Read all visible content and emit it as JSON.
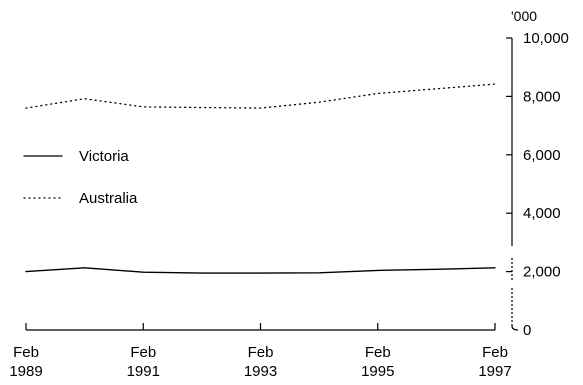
{
  "chart_data": {
    "type": "line",
    "title": "",
    "xlabel": "",
    "ylabel": "'000",
    "y_unit_label": "'000",
    "ylim": [
      0,
      10000
    ],
    "y_ticks": [
      0,
      2000,
      4000,
      6000,
      8000,
      10000
    ],
    "y_tick_labels": [
      "0",
      "2,000",
      "4,000",
      "6,000",
      "8,000",
      "10,000"
    ],
    "x_ticks": [
      {
        "year": 1989,
        "label": "Feb",
        "sublabel": "1989"
      },
      {
        "year": 1991,
        "label": "Feb",
        "sublabel": "1991"
      },
      {
        "year": 1993,
        "label": "Feb",
        "sublabel": "1993"
      },
      {
        "year": 1995,
        "label": "Feb",
        "sublabel": "1995"
      },
      {
        "year": 1997,
        "label": "Feb",
        "sublabel": "1997"
      }
    ],
    "xlim": [
      1989,
      1997
    ],
    "grid": false,
    "legend_position": "middle-left",
    "x": [
      "Feb 1989",
      "Feb 1990",
      "Feb 1991",
      "Feb 1992",
      "Feb 1993",
      "Feb 1994",
      "Feb 1995",
      "Feb 1996",
      "Feb 1997"
    ],
    "x_years": [
      1989,
      1990,
      1991,
      1992,
      1993,
      1994,
      1995,
      1996,
      1997
    ],
    "series": [
      {
        "name": "Victoria",
        "style": "solid",
        "color": "#000000",
        "values": [
          2000,
          2130,
          1980,
          1950,
          1950,
          1960,
          2040,
          2080,
          2130
        ]
      },
      {
        "name": "Australia",
        "style": "dotted",
        "color": "#000000",
        "values": [
          7600,
          7920,
          7640,
          7620,
          7600,
          7800,
          8100,
          8260,
          8420
        ]
      }
    ]
  }
}
